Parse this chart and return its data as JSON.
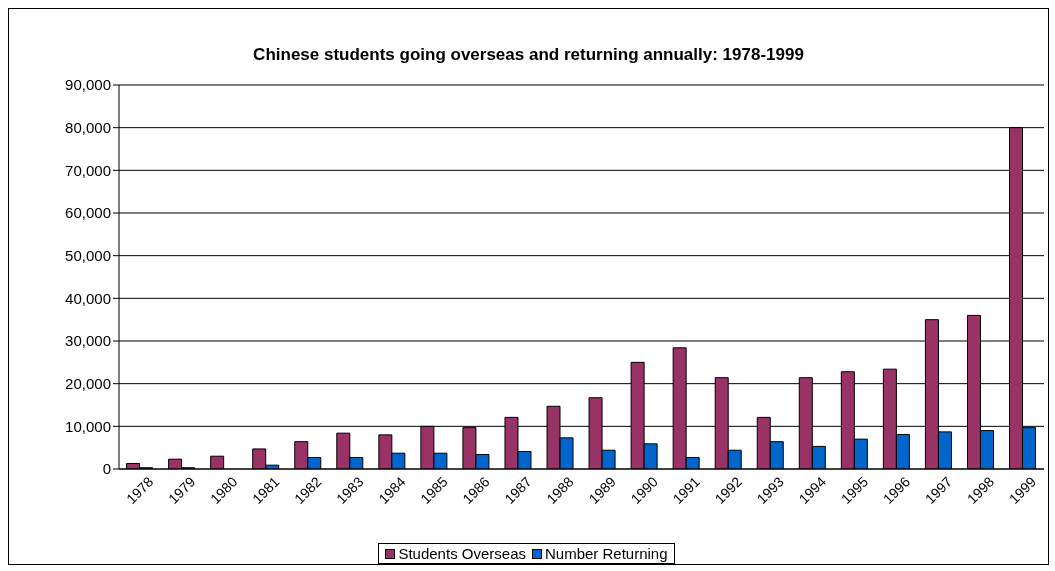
{
  "chart_data": {
    "type": "bar",
    "title": "Chinese students going overseas and returning annually: 1978-1999",
    "categories": [
      "1978",
      "1979",
      "1980",
      "1981",
      "1982",
      "1983",
      "1984",
      "1985",
      "1986",
      "1987",
      "1988",
      "1989",
      "1990",
      "1991",
      "1992",
      "1993",
      "1994",
      "1995",
      "1996",
      "1997",
      "1998",
      "1999"
    ],
    "series": [
      {
        "name": "Students Overseas",
        "color": "#993366",
        "values": [
          1300,
          2300,
          3000,
          4700,
          6400,
          8400,
          8000,
          10000,
          9700,
          12100,
          14700,
          16700,
          25000,
          28400,
          21400,
          12100,
          21400,
          22800,
          23400,
          35000,
          36000,
          80000
        ]
      },
      {
        "name": "Number Returning",
        "color": "#0066cc",
        "values": [
          300,
          300,
          0,
          900,
          2700,
          2700,
          3700,
          3700,
          3400,
          4100,
          7300,
          4400,
          5900,
          2700,
          4400,
          6400,
          5300,
          7000,
          8100,
          8700,
          9000,
          9700
        ]
      }
    ],
    "ylim": [
      0,
      90000
    ],
    "yticks": [
      0,
      {
        "value": 10000,
        "label": "10,000"
      },
      {
        "value": 20000,
        "label": "20,000"
      },
      {
        "value": 30000,
        "label": "30,000"
      },
      {
        "value": 40000,
        "label": "40,000"
      },
      {
        "value": 50000,
        "label": "50,000"
      },
      {
        "value": 60000,
        "label": "60,000"
      },
      {
        "value": 70000,
        "label": "70,000"
      },
      {
        "value": 80000,
        "label": "80,000"
      },
      {
        "value": 90000,
        "label": "90,000"
      }
    ],
    "grid": "y",
    "legend": "bottom"
  }
}
